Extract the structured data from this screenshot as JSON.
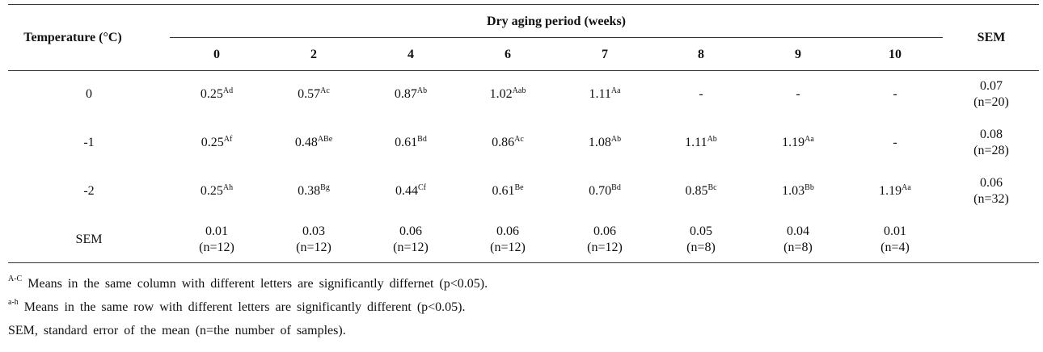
{
  "table": {
    "row_header": "Temperature (°C)",
    "group_header": "Dry aging period (weeks)",
    "columns": [
      "0",
      "2",
      "4",
      "6",
      "7",
      "8",
      "9",
      "10"
    ],
    "sem_header": "SEM",
    "rows": [
      {
        "label": "0",
        "cells": [
          {
            "value": "0.25",
            "sup": "Ad"
          },
          {
            "value": "0.57",
            "sup": "Ac"
          },
          {
            "value": "0.87",
            "sup": "Ab"
          },
          {
            "value": "1.02",
            "sup": "Aab"
          },
          {
            "value": "1.11",
            "sup": "Aa"
          },
          {
            "value": "-"
          },
          {
            "value": "-"
          },
          {
            "value": "-"
          }
        ],
        "sem": [
          "0.07",
          "(n=20)"
        ]
      },
      {
        "label": "-1",
        "cells": [
          {
            "value": "0.25",
            "sup": "Af"
          },
          {
            "value": "0.48",
            "sup": "ABe"
          },
          {
            "value": "0.61",
            "sup": "Bd"
          },
          {
            "value": "0.86",
            "sup": "Ac"
          },
          {
            "value": "1.08",
            "sup": "Ab"
          },
          {
            "value": "1.11",
            "sup": "Ab"
          },
          {
            "value": "1.19",
            "sup": "Aa"
          },
          {
            "value": "-"
          }
        ],
        "sem": [
          "0.08",
          "(n=28)"
        ]
      },
      {
        "label": "-2",
        "cells": [
          {
            "value": "0.25",
            "sup": "Ah"
          },
          {
            "value": "0.38",
            "sup": "Bg"
          },
          {
            "value": "0.44",
            "sup": "Cf"
          },
          {
            "value": "0.61",
            "sup": "Be"
          },
          {
            "value": "0.70",
            "sup": "Bd"
          },
          {
            "value": "0.85",
            "sup": "Bc"
          },
          {
            "value": "1.03",
            "sup": "Bb"
          },
          {
            "value": "1.19",
            "sup": "Aa"
          }
        ],
        "sem": [
          "0.06",
          "(n=32)"
        ]
      }
    ],
    "sem_row": {
      "label": "SEM",
      "cells": [
        [
          "0.01",
          "(n=12)"
        ],
        [
          "0.03",
          "(n=12)"
        ],
        [
          "0.06",
          "(n=12)"
        ],
        [
          "0.06",
          "(n=12)"
        ],
        [
          "0.06",
          "(n=12)"
        ],
        [
          "0.05",
          "(n=8)"
        ],
        [
          "0.04",
          "(n=8)"
        ],
        [
          "0.01",
          "(n=4)"
        ]
      ]
    }
  },
  "footnotes": [
    {
      "sup": "A-C",
      "text": "Means in the same column with different letters are significantly differnet (p<0.05)."
    },
    {
      "sup": "a-h",
      "text": "Means in the same row with different letters are significantly different (p<0.05)."
    },
    {
      "text": "SEM, standard error of the mean (n=the number of samples)."
    }
  ]
}
